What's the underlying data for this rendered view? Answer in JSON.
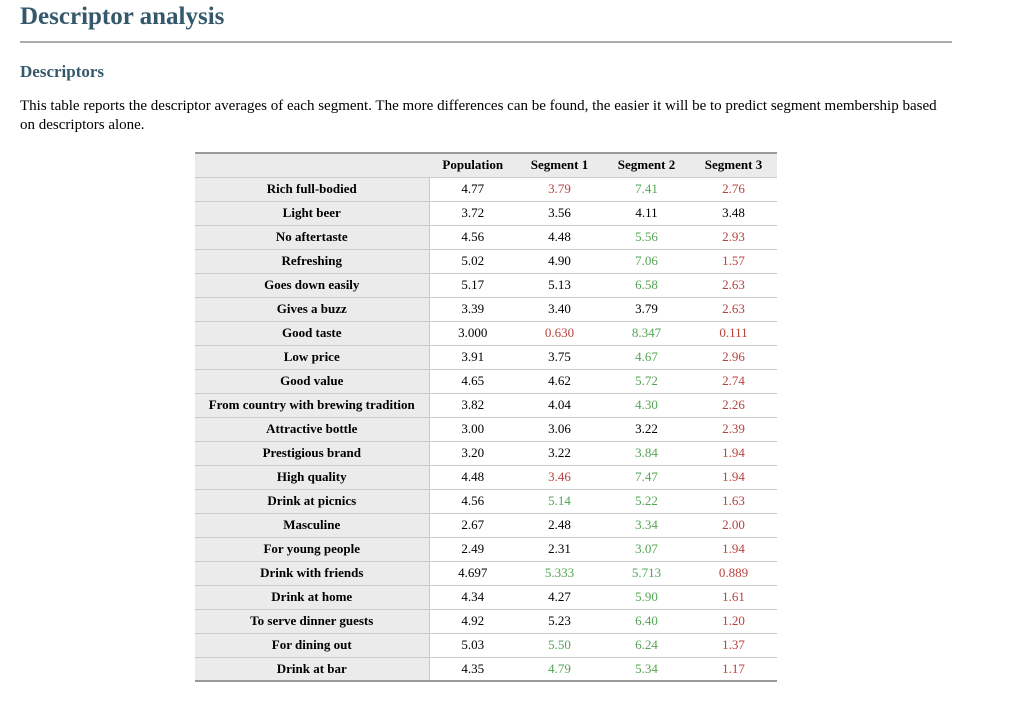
{
  "page": {
    "title": "Descriptor analysis",
    "section_heading": "Descriptors",
    "description": "This table reports the descriptor averages of each segment. The more differences can be found, the easier it will be to predict segment membership based on descriptors alone."
  },
  "colors": {
    "accent_heading": "#35596b",
    "value_negative": "#b8423e",
    "value_positive": "#55a455",
    "row_label_bg": "#ebebeb",
    "row_line": "#cbcbcb",
    "table_edge": "#9a9a9a"
  },
  "table": {
    "columns": [
      "",
      "Population",
      "Segment 1",
      "Segment 2",
      "Segment 3"
    ],
    "rows": [
      {
        "label": "Rich full-bodied",
        "values": [
          "4.77",
          "3.79",
          "7.41",
          "2.76"
        ],
        "colors": [
          "black",
          "red",
          "green",
          "red"
        ]
      },
      {
        "label": "Light beer",
        "values": [
          "3.72",
          "3.56",
          "4.11",
          "3.48"
        ],
        "colors": [
          "black",
          "black",
          "black",
          "black"
        ]
      },
      {
        "label": "No aftertaste",
        "values": [
          "4.56",
          "4.48",
          "5.56",
          "2.93"
        ],
        "colors": [
          "black",
          "black",
          "green",
          "red"
        ]
      },
      {
        "label": "Refreshing",
        "values": [
          "5.02",
          "4.90",
          "7.06",
          "1.57"
        ],
        "colors": [
          "black",
          "black",
          "green",
          "red"
        ]
      },
      {
        "label": "Goes down easily",
        "values": [
          "5.17",
          "5.13",
          "6.58",
          "2.63"
        ],
        "colors": [
          "black",
          "black",
          "green",
          "red"
        ]
      },
      {
        "label": "Gives a buzz",
        "values": [
          "3.39",
          "3.40",
          "3.79",
          "2.63"
        ],
        "colors": [
          "black",
          "black",
          "black",
          "red"
        ]
      },
      {
        "label": "Good taste",
        "values": [
          "3.000",
          "0.630",
          "8.347",
          "0.111"
        ],
        "colors": [
          "black",
          "red",
          "green",
          "red"
        ]
      },
      {
        "label": "Low price",
        "values": [
          "3.91",
          "3.75",
          "4.67",
          "2.96"
        ],
        "colors": [
          "black",
          "black",
          "green",
          "red"
        ]
      },
      {
        "label": "Good value",
        "values": [
          "4.65",
          "4.62",
          "5.72",
          "2.74"
        ],
        "colors": [
          "black",
          "black",
          "green",
          "red"
        ]
      },
      {
        "label": "From country with brewing tradition",
        "values": [
          "3.82",
          "4.04",
          "4.30",
          "2.26"
        ],
        "colors": [
          "black",
          "black",
          "green",
          "red"
        ]
      },
      {
        "label": "Attractive bottle",
        "values": [
          "3.00",
          "3.06",
          "3.22",
          "2.39"
        ],
        "colors": [
          "black",
          "black",
          "black",
          "red"
        ]
      },
      {
        "label": "Prestigious brand",
        "values": [
          "3.20",
          "3.22",
          "3.84",
          "1.94"
        ],
        "colors": [
          "black",
          "black",
          "green",
          "red"
        ]
      },
      {
        "label": "High quality",
        "values": [
          "4.48",
          "3.46",
          "7.47",
          "1.94"
        ],
        "colors": [
          "black",
          "red",
          "green",
          "red"
        ]
      },
      {
        "label": "Drink at picnics",
        "values": [
          "4.56",
          "5.14",
          "5.22",
          "1.63"
        ],
        "colors": [
          "black",
          "green",
          "green",
          "red"
        ]
      },
      {
        "label": "Masculine",
        "values": [
          "2.67",
          "2.48",
          "3.34",
          "2.00"
        ],
        "colors": [
          "black",
          "black",
          "green",
          "red"
        ]
      },
      {
        "label": "For young people",
        "values": [
          "2.49",
          "2.31",
          "3.07",
          "1.94"
        ],
        "colors": [
          "black",
          "black",
          "green",
          "red"
        ]
      },
      {
        "label": "Drink with friends",
        "values": [
          "4.697",
          "5.333",
          "5.713",
          "0.889"
        ],
        "colors": [
          "black",
          "green",
          "green",
          "red"
        ]
      },
      {
        "label": "Drink at home",
        "values": [
          "4.34",
          "4.27",
          "5.90",
          "1.61"
        ],
        "colors": [
          "black",
          "black",
          "green",
          "red"
        ]
      },
      {
        "label": "To serve dinner guests",
        "values": [
          "4.92",
          "5.23",
          "6.40",
          "1.20"
        ],
        "colors": [
          "black",
          "black",
          "green",
          "red"
        ]
      },
      {
        "label": "For dining out",
        "values": [
          "5.03",
          "5.50",
          "6.24",
          "1.37"
        ],
        "colors": [
          "black",
          "green",
          "green",
          "red"
        ]
      },
      {
        "label": "Drink at bar",
        "values": [
          "4.35",
          "4.79",
          "5.34",
          "1.17"
        ],
        "colors": [
          "black",
          "green",
          "green",
          "red"
        ]
      }
    ]
  }
}
